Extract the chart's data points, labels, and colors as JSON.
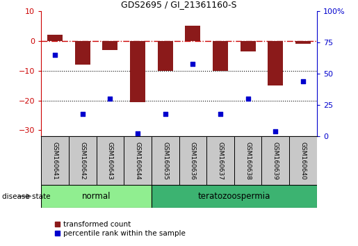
{
  "title": "GDS2695 / GI_21361160-S",
  "samples": [
    "GSM160641",
    "GSM160642",
    "GSM160643",
    "GSM160644",
    "GSM160635",
    "GSM160636",
    "GSM160637",
    "GSM160638",
    "GSM160639",
    "GSM160640"
  ],
  "bar_values": [
    2.0,
    -8.0,
    -3.0,
    -20.5,
    -10.0,
    5.0,
    -10.0,
    -3.5,
    -15.0,
    -1.0
  ],
  "percentile_values": [
    65,
    18,
    30,
    2,
    18,
    58,
    18,
    30,
    4,
    44
  ],
  "bar_color": "#8B1A1A",
  "percentile_color": "#0000CD",
  "ylim_left": [
    -32,
    10
  ],
  "ylim_right": [
    0,
    100
  ],
  "groups": [
    {
      "label": "normal",
      "start": 0,
      "end": 4,
      "color": "#90EE90"
    },
    {
      "label": "teratozoospermia",
      "start": 4,
      "end": 10,
      "color": "#3CB371"
    }
  ],
  "disease_state_label": "disease state",
  "legend_items": [
    {
      "label": "transformed count",
      "color": "#8B1A1A"
    },
    {
      "label": "percentile rank within the sample",
      "color": "#0000CD"
    }
  ],
  "dotted_lines": [
    -10,
    -20
  ],
  "left_ticks": [
    10,
    0,
    -10,
    -20,
    -30
  ],
  "right_ticks": [
    100,
    75,
    50,
    25,
    0
  ],
  "sample_box_color": "#C8C8C8",
  "normal_group_color": "#90EE90",
  "terato_group_color": "#3CB371"
}
